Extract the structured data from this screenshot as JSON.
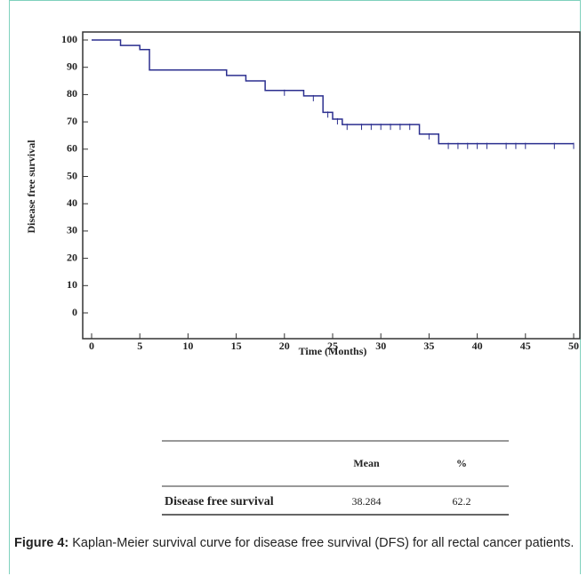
{
  "chart_data": {
    "type": "step",
    "xlabel": "Time (Months)",
    "ylabel": "Disease free survival",
    "xlim": [
      0,
      50
    ],
    "ylim": [
      0,
      100
    ],
    "xticks": [
      0,
      5,
      10,
      15,
      20,
      25,
      30,
      35,
      40,
      45,
      50
    ],
    "yticks": [
      0,
      10,
      20,
      30,
      40,
      50,
      60,
      70,
      80,
      90,
      100
    ],
    "series": [
      {
        "color": "#2b2f8f",
        "x": [
          0,
          3,
          5,
          6,
          14,
          16,
          18,
          22,
          24,
          25,
          26,
          34,
          36,
          50
        ],
        "values": [
          100,
          98,
          96.5,
          89,
          87,
          85,
          81.5,
          79.5,
          73.5,
          71,
          69,
          65.5,
          62,
          62
        ]
      },
      {
        "color": "#2b2f8f",
        "x": [
          20,
          23,
          24.5,
          25.5,
          26.5,
          28,
          29,
          30,
          31,
          32,
          33,
          35,
          37,
          38,
          39,
          40,
          41,
          43,
          44,
          45,
          48,
          50
        ],
        "values": [
          81.5,
          79.5,
          73.5,
          71,
          69,
          69,
          69,
          69,
          69,
          69,
          69,
          65.5,
          62,
          62,
          62,
          62,
          62,
          62,
          62,
          62,
          62,
          62
        ]
      }
    ]
  },
  "table": {
    "columns": [
      "Mean",
      "%"
    ],
    "rows": [
      [
        "Disease free survival",
        "38.284",
        "62.2"
      ]
    ]
  },
  "caption": {
    "label": "Figure 4:",
    "text": "Kaplan-Meier survival curve for disease free survival (DFS) for all rectal cancer patients."
  }
}
